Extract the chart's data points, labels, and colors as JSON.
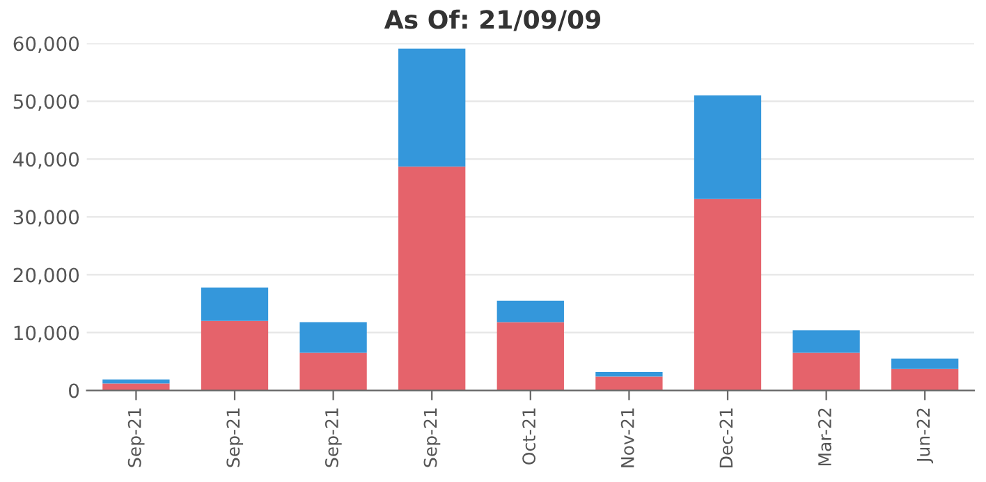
{
  "chart_data": {
    "type": "bar",
    "title": "As Of: 21/09/09",
    "stacked": true,
    "categories": [
      "Sep-21",
      "Sep-21",
      "Sep-21",
      "Sep-21",
      "Oct-21",
      "Nov-21",
      "Dec-21",
      "Mar-22",
      "Jun-22"
    ],
    "series": [
      {
        "color": "#e5636b",
        "values": [
          1200,
          12000,
          6500,
          38700,
          11800,
          2400,
          33100,
          6500,
          3700
        ]
      },
      {
        "color": "#3497db",
        "values": [
          700,
          5800,
          5300,
          20400,
          3700,
          800,
          17900,
          3900,
          1800
        ]
      }
    ],
    "ylim": [
      0,
      60000
    ],
    "yticks": [
      {
        "value": 0,
        "label": "0"
      },
      {
        "value": 10000,
        "label": "10,000"
      },
      {
        "value": 20000,
        "label": "20,000"
      },
      {
        "value": 30000,
        "label": "30,000"
      },
      {
        "value": 40000,
        "label": "40,000"
      },
      {
        "value": 50000,
        "label": "50,000"
      },
      {
        "value": 60000,
        "label": "60,000"
      }
    ],
    "grid": "y"
  }
}
